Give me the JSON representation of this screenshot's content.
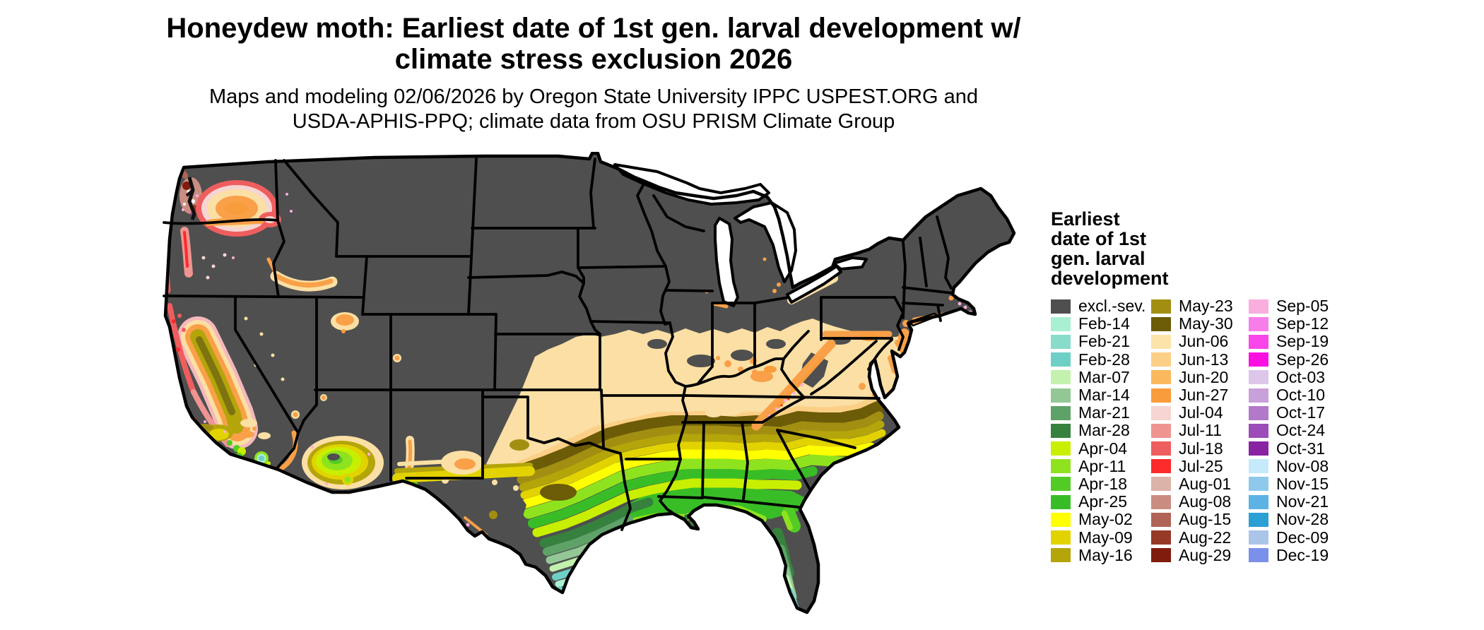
{
  "title": {
    "line1": "Honeydew moth: Earliest date of 1st gen. larval development w/",
    "line2": "climate stress exclusion 2026"
  },
  "subtitle": {
    "line1": "Maps and modeling 02/06/2026 by Oregon State University IPPC USPEST.ORG and",
    "line2": "USDA-APHIS-PPQ; climate data from OSU PRISM Climate Group"
  },
  "legend": {
    "title_lines": [
      "Earliest",
      "date of 1st",
      "gen. larval",
      "development"
    ],
    "columns": [
      [
        {
          "label": "excl.-sev.",
          "color": "#4f4f4f"
        },
        {
          "label": "Feb-14",
          "color": "#a9f0d2"
        },
        {
          "label": "Feb-21",
          "color": "#8adcca"
        },
        {
          "label": "Feb-28",
          "color": "#6ecfc6"
        },
        {
          "label": "Mar-07",
          "color": "#c2f2ae"
        },
        {
          "label": "Mar-14",
          "color": "#93c896"
        },
        {
          "label": "Mar-21",
          "color": "#5ea268"
        },
        {
          "label": "Mar-28",
          "color": "#36813e"
        },
        {
          "label": "Apr-04",
          "color": "#c9ef00"
        },
        {
          "label": "Apr-11",
          "color": "#8fe31e"
        },
        {
          "label": "Apr-18",
          "color": "#52cb25"
        },
        {
          "label": "Apr-25",
          "color": "#39bd27"
        },
        {
          "label": "May-02",
          "color": "#ffff00"
        },
        {
          "label": "May-09",
          "color": "#e2d300"
        },
        {
          "label": "May-16",
          "color": "#b4a50b"
        }
      ],
      [
        {
          "label": "May-23",
          "color": "#a28f12"
        },
        {
          "label": "May-30",
          "color": "#6c5b07"
        },
        {
          "label": "Jun-06",
          "color": "#fce3a9"
        },
        {
          "label": "Jun-13",
          "color": "#fccf87"
        },
        {
          "label": "Jun-20",
          "color": "#fbb95e"
        },
        {
          "label": "Jun-27",
          "color": "#f89c3c"
        },
        {
          "label": "Jul-04",
          "color": "#f6d5d2"
        },
        {
          "label": "Jul-11",
          "color": "#f09492"
        },
        {
          "label": "Jul-18",
          "color": "#ee5e5e"
        },
        {
          "label": "Jul-25",
          "color": "#fa2b2a"
        },
        {
          "label": "Aug-01",
          "color": "#dcb3a9"
        },
        {
          "label": "Aug-08",
          "color": "#c98e81"
        },
        {
          "label": "Aug-15",
          "color": "#b06456"
        },
        {
          "label": "Aug-22",
          "color": "#963a27"
        },
        {
          "label": "Aug-29",
          "color": "#7f1c0d"
        }
      ],
      [
        {
          "label": "Sep-05",
          "color": "#f9aede"
        },
        {
          "label": "Sep-12",
          "color": "#f77de9"
        },
        {
          "label": "Sep-19",
          "color": "#f946ea"
        },
        {
          "label": "Sep-26",
          "color": "#fb10e1"
        },
        {
          "label": "Oct-03",
          "color": "#dcc6ea"
        },
        {
          "label": "Oct-10",
          "color": "#c9a1da"
        },
        {
          "label": "Oct-17",
          "color": "#b278c9"
        },
        {
          "label": "Oct-24",
          "color": "#9c4db8"
        },
        {
          "label": "Oct-31",
          "color": "#8823a2"
        },
        {
          "label": "Nov-08",
          "color": "#c5eafb"
        },
        {
          "label": "Nov-15",
          "color": "#8ec9ec"
        },
        {
          "label": "Nov-21",
          "color": "#5cb3e4"
        },
        {
          "label": "Nov-28",
          "color": "#2c9fd5"
        },
        {
          "label": "Dec-09",
          "color": "#abc5e8"
        },
        {
          "label": "Dec-19",
          "color": "#7b90ea"
        }
      ]
    ]
  },
  "map": {
    "excluded_color": "#4f4f4f",
    "background_color": "#ffffff"
  }
}
